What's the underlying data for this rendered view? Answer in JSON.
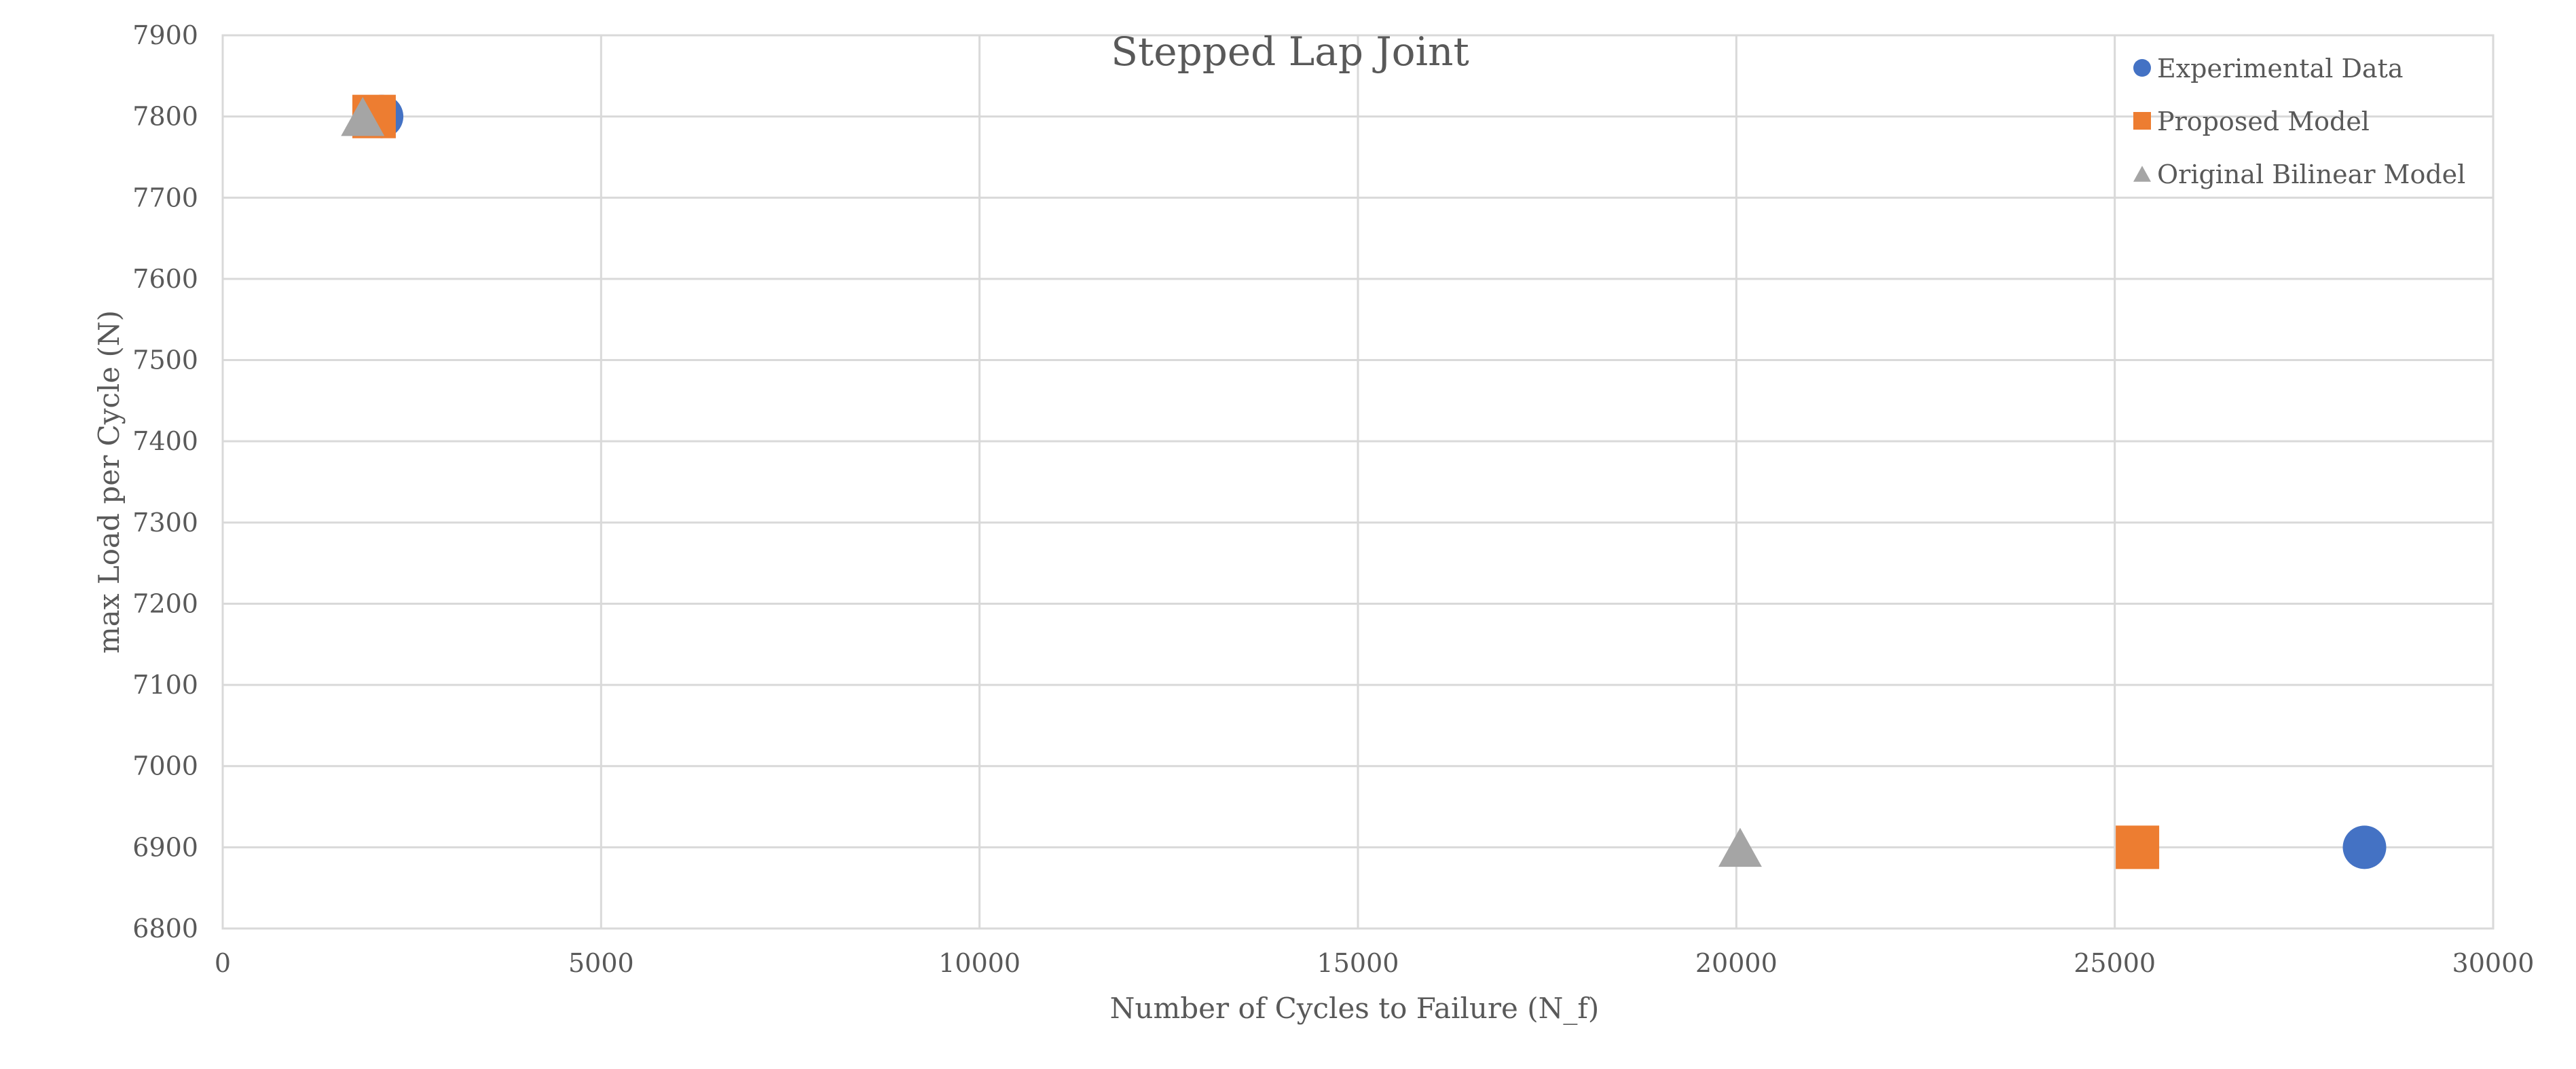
{
  "chart_data": {
    "type": "scatter",
    "title": "Stepped Lap Joint",
    "xlabel": "Number of Cycles to Failure (N_f)",
    "ylabel": "max Load per Cycle (N)",
    "xlim": [
      0,
      30000
    ],
    "ylim": [
      6800,
      7900
    ],
    "xticks": [
      "0",
      "5000",
      "10000",
      "15000",
      "20000",
      "25000",
      "30000"
    ],
    "yticks": [
      "6800",
      "6900",
      "7000",
      "7100",
      "7200",
      "7300",
      "7400",
      "7500",
      "7600",
      "7700",
      "7800",
      "7900"
    ],
    "grid": true,
    "legend_position": "top-right",
    "series": [
      {
        "name": "Experimental Data",
        "marker": "circle",
        "color": "#4472C4",
        "points": [
          {
            "x": 2100,
            "y": 7800
          },
          {
            "x": 28300,
            "y": 6900
          }
        ]
      },
      {
        "name": "Proposed Model",
        "marker": "square",
        "color": "#ED7D31",
        "points": [
          {
            "x": 2000,
            "y": 7800
          },
          {
            "x": 25300,
            "y": 6900
          }
        ]
      },
      {
        "name": "Original Bilinear Model",
        "marker": "triangle",
        "color": "#A5A5A5",
        "points": [
          {
            "x": 1850,
            "y": 7800
          },
          {
            "x": 20050,
            "y": 6900
          }
        ]
      }
    ]
  }
}
